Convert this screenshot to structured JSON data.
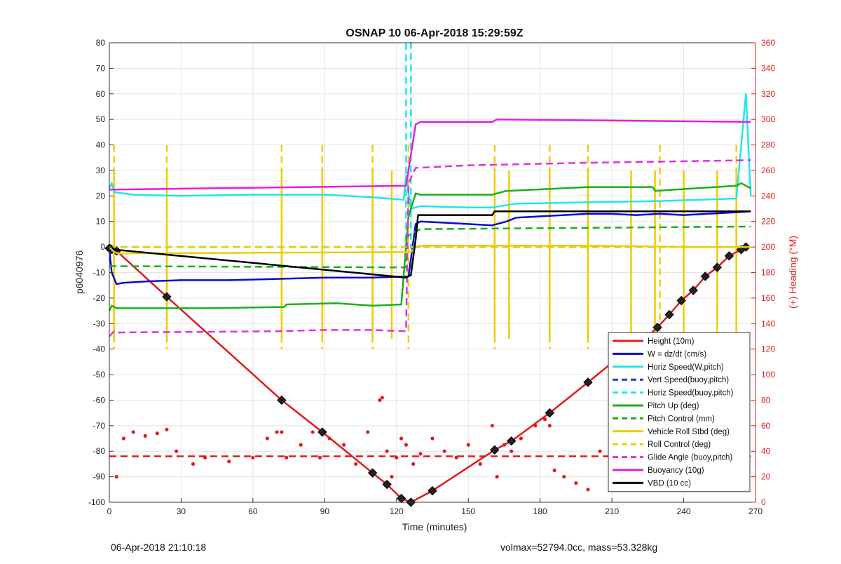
{
  "chart_data": {
    "type": "line",
    "title": "OSNAP 10 06-Apr-2018 15:29:59Z",
    "xlabel": "Time (minutes)",
    "ylabel_left": "p6040976",
    "ylabel_right": "(+) Heading (°M)",
    "xlim": [
      0,
      270
    ],
    "ylim_left": [
      -100,
      80
    ],
    "ylim_right": [
      0,
      360
    ],
    "x_ticks": [
      0,
      30,
      60,
      90,
      120,
      150,
      180,
      210,
      240,
      270
    ],
    "y_ticks_left": [
      -100,
      -90,
      -80,
      -70,
      -60,
      -50,
      -40,
      -30,
      -20,
      -10,
      0,
      10,
      20,
      30,
      40,
      50,
      60,
      70,
      80
    ],
    "y_ticks_right": [
      0,
      20,
      40,
      60,
      80,
      100,
      120,
      140,
      160,
      180,
      200,
      220,
      240,
      260,
      280,
      300,
      320,
      340,
      360
    ],
    "grid": true,
    "legend_position": "bottom-right",
    "series": [
      {
        "name": "Height (10m)",
        "color": "#e31a1c",
        "style": "solid",
        "marker": "diamond",
        "x": [
          0,
          1,
          3,
          24,
          72,
          89,
          110,
          116,
          122,
          126,
          135,
          161,
          168,
          184,
          200,
          217,
          220,
          225,
          229,
          234,
          239,
          244,
          249,
          254,
          259,
          264,
          266
        ],
        "y": [
          -0.5,
          -1,
          -1.5,
          -19.5,
          -60,
          -72.5,
          -88.5,
          -93,
          -98.5,
          -100,
          -95.5,
          -79.5,
          -76,
          -65,
          -53,
          -40,
          -39,
          -35,
          -31.5,
          -26.5,
          -21,
          -17,
          -11.5,
          -8,
          -3.5,
          -1,
          0
        ]
      },
      {
        "name": "W = dz/dt (cm/s)",
        "color": "#0a0ad0",
        "style": "solid",
        "x": [
          0,
          1,
          3,
          6,
          15,
          30,
          50,
          70,
          90,
          110,
          125,
          128,
          130,
          140,
          150,
          160,
          166,
          170,
          180,
          190,
          200,
          210,
          220,
          230,
          240,
          250,
          260,
          268
        ],
        "y": [
          -1,
          -10,
          -14.5,
          -14,
          -13.5,
          -13,
          -13,
          -12.5,
          -12,
          -12,
          -11.5,
          9,
          10,
          9.5,
          9,
          8.5,
          10,
          11.5,
          12,
          12.5,
          13,
          13,
          12.5,
          13,
          12.5,
          13,
          13.5,
          14
        ]
      },
      {
        "name": "Horiz Speed(W,pitch)",
        "color": "#22e5f0",
        "style": "solid",
        "x": [
          0,
          1,
          2,
          10,
          30,
          60,
          90,
          110,
          123,
          124,
          126,
          130,
          150,
          160,
          170,
          200,
          230,
          262,
          266,
          268
        ],
        "y": [
          23,
          25,
          21.5,
          20.5,
          20,
          20.5,
          20.5,
          19.5,
          18.5,
          28,
          15,
          16,
          15.5,
          15.5,
          17,
          17.5,
          18,
          19,
          60,
          20
        ]
      },
      {
        "name": "Vert Speed(buoy,pitch)",
        "color": "#1f3fd0",
        "style": "dashed",
        "x": [
          0,
          268
        ],
        "y": [
          0,
          0
        ]
      },
      {
        "name": "Horiz Speed(buoy,pitch)",
        "color": "#22e5f0",
        "style": "dashed",
        "x": [
          0,
          124,
          124,
          126,
          126,
          130
        ],
        "y": [
          0,
          0,
          80,
          80,
          0,
          0
        ]
      },
      {
        "name": "Pitch Up (deg)",
        "color": "#1ab01a",
        "style": "solid",
        "x": [
          0,
          1,
          3,
          15,
          40,
          73,
          74,
          95,
          110,
          122,
          125,
          128,
          130,
          160,
          166,
          167,
          200,
          227,
          228,
          262,
          264,
          268
        ],
        "y": [
          -25,
          -23,
          -24,
          -24,
          -24,
          -23.5,
          -22.5,
          -22,
          -23,
          -22.5,
          12,
          21,
          20.5,
          20.5,
          22,
          22,
          23.5,
          23.5,
          22,
          24,
          25,
          23
        ]
      },
      {
        "name": "Pitch Control (mm)",
        "color": "#1ab01a",
        "style": "dashed",
        "x": [
          0,
          124,
          124,
          130,
          200,
          268
        ],
        "y": [
          -7.5,
          -8,
          4,
          7,
          7.5,
          8
        ]
      },
      {
        "name": "Vehicle Roll Stbd (deg)",
        "color": "#f0cc00",
        "style": "solid",
        "x": [
          0,
          2,
          4,
          126,
          128,
          130,
          150,
          166,
          200,
          250,
          268
        ],
        "y": [
          0,
          -2,
          -2.5,
          -2,
          0,
          0.5,
          0.5,
          0.5,
          0.5,
          0,
          0
        ]
      },
      {
        "name": "Roll Control (deg)",
        "color": "#f0cc00",
        "style": "dashed",
        "x": [
          0,
          268
        ],
        "y": [
          0,
          0
        ]
      },
      {
        "name": "Glide Angle (buoy,pitch)",
        "color": "#e030e0",
        "style": "dashed",
        "x": [
          0,
          2,
          4,
          70,
          90,
          110,
          124,
          125,
          128,
          150,
          200,
          268
        ],
        "y": [
          -35,
          -33,
          -33.5,
          -33,
          -32.5,
          -32.5,
          -33,
          25,
          31,
          32,
          33,
          34
        ]
      },
      {
        "name": "Buoyancy (10g)",
        "color": "#e020e0",
        "style": "solid",
        "x": [
          0,
          2,
          124,
          128,
          130,
          160,
          162,
          268
        ],
        "y": [
          22.5,
          22.5,
          24,
          48,
          49,
          49,
          50,
          49
        ]
      },
      {
        "name": "VBD (10 cc)",
        "color": "#000000",
        "style": "solid",
        "x": [
          0,
          2,
          124,
          126,
          128,
          129,
          160,
          161,
          268
        ],
        "y": [
          1,
          -1,
          -12,
          -11,
          3,
          12.5,
          12.5,
          14,
          14
        ]
      },
      {
        "name": "(+) Heading (°M)",
        "color": "#e31a1c",
        "style": "dots",
        "axis": "right",
        "x": [
          3,
          6,
          10,
          15,
          20,
          24,
          28,
          35,
          40,
          50,
          60,
          66,
          70,
          72,
          74,
          80,
          85,
          88,
          92,
          98,
          103,
          108,
          113,
          114,
          116,
          118,
          120,
          122,
          124,
          127,
          130,
          135,
          140,
          145,
          150,
          155,
          160,
          162,
          165,
          168,
          172,
          178,
          182,
          184,
          186,
          190,
          195,
          200,
          205,
          210,
          220,
          230,
          240,
          250,
          260,
          266
        ],
        "y": [
          20,
          50,
          55,
          52,
          54,
          57,
          40,
          30,
          35,
          32,
          35,
          50,
          55,
          55,
          35,
          45,
          55,
          35,
          50,
          45,
          30,
          55,
          80,
          82,
          40,
          20,
          35,
          50,
          45,
          30,
          38,
          50,
          40,
          35,
          45,
          30,
          60,
          20,
          45,
          40,
          50,
          60,
          65,
          60,
          25,
          20,
          15,
          10,
          40,
          45,
          48,
          47,
          50,
          45,
          40,
          35
        ]
      },
      {
        "name": "",
        "color": "#e31a1c",
        "style": "dashed",
        "axis": "right",
        "x": [
          0,
          268
        ],
        "y": [
          36,
          36
        ]
      }
    ],
    "spikes": [
      {
        "series": "Vehicle Roll Stbd (deg)",
        "x": [
          2,
          24,
          72,
          89,
          110,
          118,
          161,
          167,
          184,
          200,
          218,
          228,
          240,
          254,
          262
        ],
        "top": 30,
        "bottom": -36
      },
      {
        "series": "Roll Control (deg)",
        "x": [
          2,
          24,
          72,
          89,
          110,
          125,
          161,
          184,
          200,
          230,
          262
        ],
        "top": 40,
        "bottom": -40
      }
    ]
  },
  "footer": {
    "left": "06-Apr-2018 21:10:18",
    "right": "volmax=52794.0cc, mass=53.328kg"
  }
}
